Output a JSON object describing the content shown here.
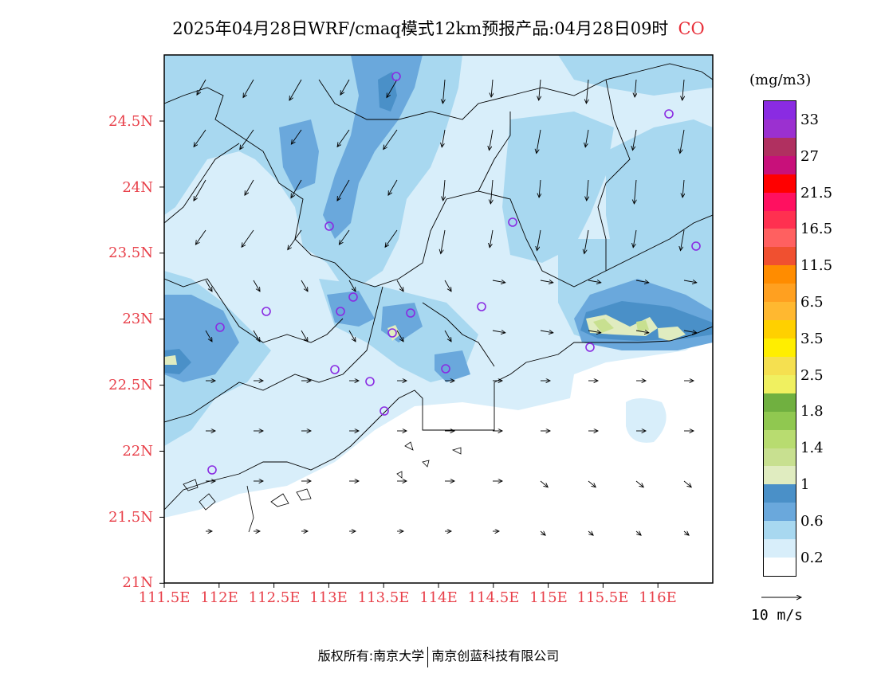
{
  "title": {
    "text": "2025年04月28日WRF/cmaq模式12km预报产品:04月28日09时",
    "species": "CO"
  },
  "axes": {
    "lat_labels": [
      "24.5N",
      "24N",
      "23.5N",
      "23N",
      "22.5N",
      "22N",
      "21.5N",
      "21N"
    ],
    "lon_labels": [
      "111.5E",
      "112E",
      "112.5E",
      "113E",
      "113.5E",
      "114E",
      "114.5E",
      "115E",
      "115.5E",
      "116E"
    ],
    "lat_range": [
      21.0,
      25.0
    ],
    "lon_range": [
      111.5,
      116.5
    ]
  },
  "colorbar": {
    "unit": "(mg/m3)",
    "labels": [
      "33",
      "27",
      "21.5",
      "16.5",
      "11.5",
      "6.5",
      "3.5",
      "2.5",
      "1.8",
      "1.4",
      "1",
      "0.6",
      "0.2"
    ],
    "colors": [
      "#8a2be2",
      "#9b30d0",
      "#b03060",
      "#c8107a",
      "#ff0000",
      "#ff1060",
      "#ff3050",
      "#ff6060",
      "#f05030",
      "#ff8c00",
      "#ffa020",
      "#ffb830",
      "#ffd000",
      "#ffee00",
      "#f5e050",
      "#f0f060",
      "#70b040",
      "#90c850",
      "#b8dc70",
      "#c8e090",
      "#e0ecc0",
      "#4a90c8",
      "#6aa8dc",
      "#a8d8f0",
      "#d8eefa",
      "#ffffff"
    ]
  },
  "wind_reference": {
    "label": "10 m/s"
  },
  "footer": {
    "left": "版权所有:南京大学",
    "right": "南京创蓝科技有限公司"
  },
  "field_colors": {
    "c02": "#d8eefa",
    "c06": "#a8d8f0",
    "c08": "#6aa8dc",
    "c10": "#4a90c8",
    "c12": "#e0ecc0",
    "c14": "#c8e090",
    "site": "#8a2be2",
    "coast": "#000000"
  }
}
